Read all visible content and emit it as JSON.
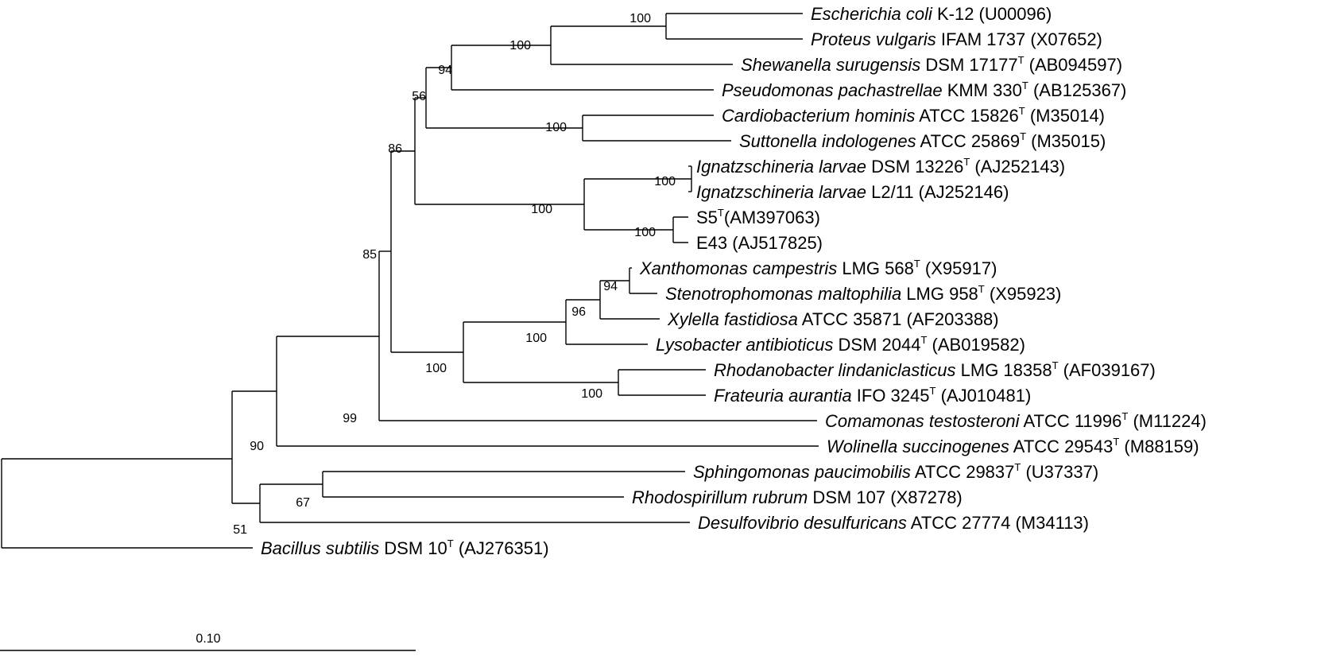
{
  "taxa": [
    {
      "id": "ecoli",
      "name": "Escherichia coli",
      "rest": " K-12",
      "type": "",
      "acc": " (U00096)"
    },
    {
      "id": "proteus",
      "name": "Proteus vulgaris",
      "rest": " IFAM 1737",
      "type": "",
      "acc": " (X07652)"
    },
    {
      "id": "shew",
      "name": "Shewanella surugensis",
      "rest": " DSM 17177",
      "type": "T",
      "acc": " (AB094597)"
    },
    {
      "id": "pseudo",
      "name": "Pseudomonas pachastrellae",
      "rest": " KMM 330",
      "type": "T",
      "acc": " (AB125367)"
    },
    {
      "id": "cardio",
      "name": "Cardiobacterium hominis",
      "rest": " ATCC 15826",
      "type": "T",
      "acc": " (M35014)"
    },
    {
      "id": "sutton",
      "name": "Suttonella indologenes",
      "rest": " ATCC 25869",
      "type": "T",
      "acc": " (M35015)"
    },
    {
      "id": "ign1",
      "name": "Ignatzschineria larvae",
      "rest": " DSM 13226",
      "type": "T",
      "acc": "  (AJ252143)"
    },
    {
      "id": "ign2",
      "name": "Ignatzschineria larvae",
      "rest": " L2/11",
      "type": "",
      "acc": " (AJ252146)"
    },
    {
      "id": "s5",
      "name": "",
      "rest": "S5",
      "type": "T",
      "acc": "(AM397063)"
    },
    {
      "id": "e43",
      "name": "",
      "rest": "E43",
      "type": "",
      "acc": " (AJ517825)"
    },
    {
      "id": "xantho",
      "name": "Xanthomonas campestris",
      "rest": " LMG 568",
      "type": "T",
      "acc": " (X95917)"
    },
    {
      "id": "steno",
      "name": "Stenotrophomonas maltophilia",
      "rest": " LMG 958",
      "type": "T",
      "acc": " (X95923)"
    },
    {
      "id": "xylella",
      "name": "Xylella fastidiosa",
      "rest": " ATCC 35871",
      "type": "",
      "acc": " (AF203388)"
    },
    {
      "id": "lyso",
      "name": "Lysobacter antibioticus",
      "rest": " DSM 2044",
      "type": "T",
      "acc": " (AB019582)"
    },
    {
      "id": "rhodano",
      "name": "Rhodanobacter lindaniclasticus",
      "rest": " LMG 18358",
      "type": "T",
      "acc": " (AF039167)"
    },
    {
      "id": "frat",
      "name": "Frateuria aurantia",
      "rest": " IFO 3245",
      "type": "T",
      "acc": " (AJ010481)"
    },
    {
      "id": "coma",
      "name": "Comamonas testosteroni",
      "rest": " ATCC 11996",
      "type": "T",
      "acc": " (M11224)"
    },
    {
      "id": "wolin",
      "name": "Wolinella succinogenes",
      "rest": " ATCC 29543",
      "type": "T",
      "acc": " (M88159)"
    },
    {
      "id": "sphingo",
      "name": "Sphingomonas paucimobilis",
      "rest": " ATCC 29837",
      "type": "T",
      "acc": " (U37337)"
    },
    {
      "id": "rhodosp",
      "name": "Rhodospirillum rubrum",
      "rest": " DSM 107",
      "type": "",
      "acc": " (X87278)"
    },
    {
      "id": "desulfo",
      "name": "Desulfovibrio desulfuricans",
      "rest": " ATCC 27774",
      "type": "",
      "acc": " (M34113)"
    },
    {
      "id": "bacillus",
      "name": "Bacillus subtilis",
      "rest": " DSM 10",
      "type": "T",
      "acc": " (AJ276351)"
    }
  ],
  "bootstrap": [
    "100",
    "100",
    "94",
    "56",
    "100",
    "86",
    "100",
    "100",
    "100",
    "85",
    "94",
    "96",
    "100",
    "100",
    "100",
    "99",
    "90",
    "67",
    "51"
  ],
  "scale_bar": {
    "label": "0.10"
  }
}
